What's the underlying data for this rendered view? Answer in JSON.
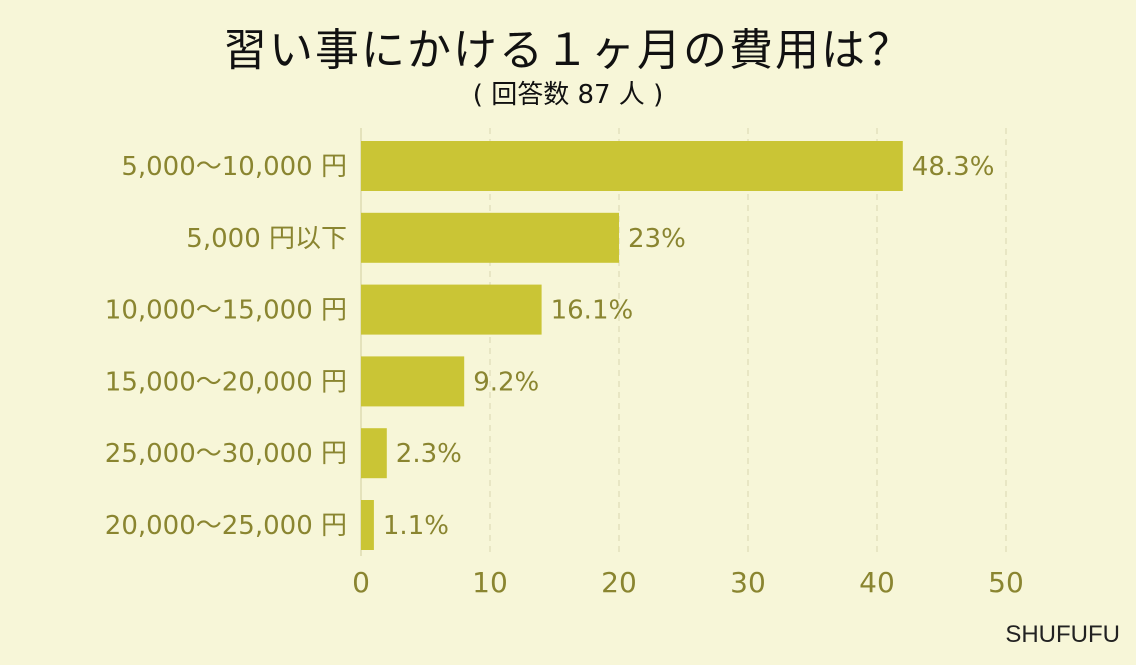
{
  "title": "習い事にかける１ヶ月の費用は？",
  "subtitle": "( 回答数 87 人 )",
  "credit": "SHUFUFU",
  "colors": {
    "bar": "#cac535",
    "background": "#f7f6d8",
    "label": "#8a8530"
  },
  "chart_data": {
    "type": "bar",
    "orientation": "horizontal",
    "categories": [
      "5,000〜10,000 円",
      "5,000 円以下",
      "10,000〜15,000 円",
      "15,000〜20,000 円",
      "25,000〜30,000 円",
      "20,000〜25,000 円"
    ],
    "values": [
      42,
      20,
      14,
      8,
      2,
      1
    ],
    "value_labels": [
      "48.3%",
      "23%",
      "16.1%",
      "9.2%",
      "2.3%",
      "1.1%"
    ],
    "xlim": [
      0,
      50
    ],
    "xticks": [
      0,
      10,
      20,
      30,
      40,
      50
    ],
    "grid": "vertical dashed"
  }
}
